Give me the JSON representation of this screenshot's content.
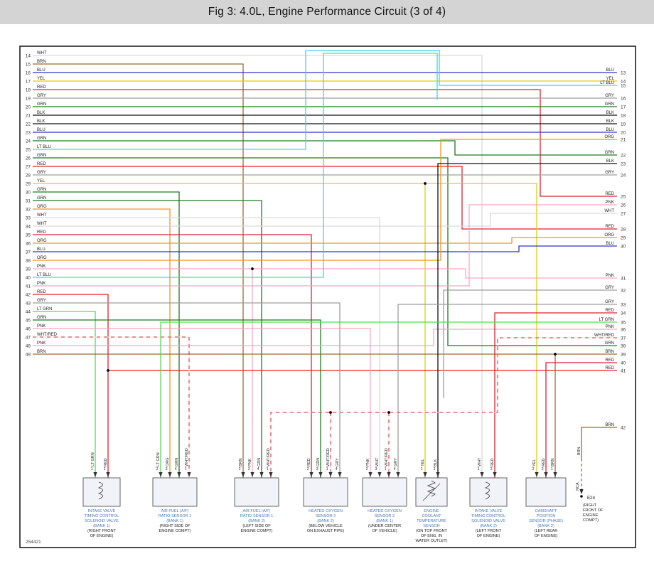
{
  "title": "Fig 3: 4.0L, Engine Performance Circuit (3 of 4)",
  "diagram_id": "254421",
  "wire_colors": {
    "WHT": "#d9d9d9",
    "BRN": "#9c6b30",
    "BLU": "#2b35c7",
    "YEL": "#ddd000",
    "RED": "#e02030",
    "GRY": "#9e9e9e",
    "GRN": "#1f7a1f",
    "BLK": "#111111",
    "LT BLU": "#3fd6e0",
    "ORG": "#f29422",
    "PNK": "#f7a8c4",
    "LT GRN": "#57d957",
    "WHT/RED": [
      "#e9e9e9",
      "#e05555"
    ]
  },
  "left_pins": [
    {
      "num": 14,
      "color": "WHT"
    },
    {
      "num": 15,
      "color": "BRN"
    },
    {
      "num": 16,
      "color": "BLU"
    },
    {
      "num": 17,
      "color": "YEL"
    },
    {
      "num": 18,
      "color": "RED"
    },
    {
      "num": 19,
      "color": "GRY"
    },
    {
      "num": 20,
      "color": "GRN"
    },
    {
      "num": 21,
      "color": "BLK"
    },
    {
      "num": 22,
      "color": "BLK"
    },
    {
      "num": 23,
      "color": "BLU"
    },
    {
      "num": 24,
      "color": "GRN"
    },
    {
      "num": 25,
      "color": "LT BLU"
    },
    {
      "num": 26,
      "color": "GRN"
    },
    {
      "num": 27,
      "color": "RED"
    },
    {
      "num": 28,
      "color": "GRY"
    },
    {
      "num": 29,
      "color": "YEL"
    },
    {
      "num": 30,
      "color": "GRN"
    },
    {
      "num": 31,
      "color": "GRN"
    },
    {
      "num": 32,
      "color": "ORG"
    },
    {
      "num": 33,
      "color": "WHT"
    },
    {
      "num": 34,
      "color": "WHT"
    },
    {
      "num": 35,
      "color": "RED"
    },
    {
      "num": 36,
      "color": "ORG"
    },
    {
      "num": 37,
      "color": "BLU"
    },
    {
      "num": 38,
      "color": "ORG"
    },
    {
      "num": 39,
      "color": "PNK"
    },
    {
      "num": 40,
      "color": "LT BLU"
    },
    {
      "num": 41,
      "color": "PNK"
    },
    {
      "num": 42,
      "color": "RED"
    },
    {
      "num": 43,
      "color": "GRY"
    },
    {
      "num": 44,
      "color": "LT GRN"
    },
    {
      "num": 45,
      "color": "GRN"
    },
    {
      "num": 46,
      "color": "PNK"
    },
    {
      "num": 47,
      "color": "WHT/RED"
    },
    {
      "num": 48,
      "color": "PNK"
    },
    {
      "num": 49,
      "color": "BRN"
    }
  ],
  "right_pins": [
    {
      "num": 13,
      "color": "BLU"
    },
    {
      "num": 14,
      "color": "YEL"
    },
    {
      "num": 15,
      "color": "LT BLU"
    },
    {
      "num": 16,
      "color": "GRY"
    },
    {
      "num": 17,
      "color": "GRN"
    },
    {
      "num": 18,
      "color": "BLK"
    },
    {
      "num": 19,
      "color": "BLK"
    },
    {
      "num": 20,
      "color": "BLU"
    },
    {
      "num": 21,
      "color": "ORG"
    },
    {
      "num": 22,
      "color": "GRN"
    },
    {
      "num": 23,
      "color": "BLK"
    },
    {
      "num": 24,
      "color": "GRY"
    },
    {
      "num": 25,
      "color": "RED"
    },
    {
      "num": 26,
      "color": "PNK"
    },
    {
      "num": 27,
      "color": "WHT"
    },
    {
      "num": 28,
      "color": "RED"
    },
    {
      "num": 29,
      "color": "ORG"
    },
    {
      "num": 30,
      "color": "BLU"
    },
    {
      "num": 31,
      "color": "PNK"
    },
    {
      "num": 32,
      "color": "GRY"
    },
    {
      "num": 33,
      "color": "GRY"
    },
    {
      "num": 34,
      "color": "RED"
    },
    {
      "num": 35,
      "color": "LT GRN"
    },
    {
      "num": 36,
      "color": "PNK"
    },
    {
      "num": 37,
      "color": "WHT/RED"
    },
    {
      "num": 38,
      "color": "GRN"
    },
    {
      "num": 39,
      "color": "BRN"
    },
    {
      "num": 40,
      "color": "RED"
    },
    {
      "num": 41,
      "color": "RED"
    },
    {
      "num": 42,
      "color": "BRN"
    }
  ],
  "components": [
    {
      "id": "intake-valve-timing-control-solenoid-valve-bank-1",
      "symbol": "coil",
      "name_lines": [
        "INTAKE VALVE",
        "TIMING CONTROL",
        "SOLENOID VALVE",
        "(BANK 1)"
      ],
      "location_lines": [
        "(RIGHT FRONT",
        "OF ENGINE)"
      ],
      "pins": [
        {
          "num": "1",
          "color": "LT GRN"
        },
        {
          "num": "2",
          "color": "RED"
        }
      ]
    },
    {
      "id": "air-fuel-ratio-sensor-1-bank-1",
      "symbol": "box",
      "name_lines": [
        "AIR FUEL (A/F)",
        "RATIO SENSOR 1",
        "(BANK 1)"
      ],
      "location_lines": [
        "(RIGHT SIDE OF",
        "ENGINE COMPT)"
      ],
      "pins": [
        {
          "num": "2",
          "color": "LT GRN"
        },
        {
          "num": "3",
          "color": "ORG"
        },
        {
          "num": "4",
          "color": "GRN"
        },
        {
          "num": "1",
          "color": "WHT/RED"
        }
      ]
    },
    {
      "id": "air-fuel-ratio-sensor-1-bank-2",
      "symbol": "box",
      "name_lines": [
        "AIR FUEL (A/F)",
        "RATIO SENSOR 1",
        "(BANK 2)"
      ],
      "location_lines": [
        "(LEFT SIDE OF",
        "ENGINE COMPT)"
      ],
      "pins": [
        {
          "num": "2",
          "color": "BRN"
        },
        {
          "num": "3",
          "color": "PNK"
        },
        {
          "num": "4",
          "color": "GRN"
        },
        {
          "num": "1",
          "color": "WHT/RED"
        }
      ]
    },
    {
      "id": "heated-oxygen-sensor-2-bank-2",
      "symbol": "box",
      "name_lines": [
        "HEATED OXYGEN",
        "SENSOR 2",
        "(BANK 2)"
      ],
      "location_lines": [
        "(BELOW VEHICLE",
        "ON EXHAUST PIPE)"
      ],
      "pins": [
        {
          "num": "2",
          "color": "RED"
        },
        {
          "num": "3",
          "color": "GRN"
        },
        {
          "num": "1",
          "color": "WHT/RED"
        },
        {
          "num": "4",
          "color": "GRY"
        }
      ]
    },
    {
      "id": "heated-oxygen-sensor-2-bank-1",
      "symbol": "box",
      "name_lines": [
        "HEATED OXYGEN",
        "SENSOR 2",
        "(BANK 1)"
      ],
      "location_lines": [
        "(UNDER CENTER",
        "OF VEHICLE)"
      ],
      "pins": [
        {
          "num": "2",
          "color": "PNK"
        },
        {
          "num": "3",
          "color": "WHT"
        },
        {
          "num": "1",
          "color": "WHT/RED"
        },
        {
          "num": "4",
          "color": "GRY"
        }
      ]
    },
    {
      "id": "engine-coolant-temperature-sensor",
      "symbol": "thermistor",
      "name_lines": [
        "ENGINE",
        "COOLANT",
        "TEMPERATURE",
        "SENSOR"
      ],
      "location_lines": [
        "(ON TOP FRONT",
        "OF ENG, IN",
        "WATER OUTLET)"
      ],
      "pins": [
        {
          "num": "1",
          "color": "YEL"
        },
        {
          "num": "2",
          "color": "BLK"
        }
      ]
    },
    {
      "id": "intake-valve-timing-control-solenoid-valve-bank-2",
      "symbol": "coil",
      "name_lines": [
        "INTAKE VALVE",
        "TIMING CONTROL",
        "SOLENOID VALVE",
        "(BANK 2)"
      ],
      "location_lines": [
        "(LEFT FRONT",
        "OF ENGINE)"
      ],
      "pins": [
        {
          "num": "1",
          "color": "WHT"
        },
        {
          "num": "2",
          "color": "RED"
        }
      ]
    },
    {
      "id": "camshaft-position-sensor-phase-bank-2",
      "symbol": "box",
      "name_lines": [
        "CAMSHAFT",
        "POSITION",
        "SENSOR (PHASE)",
        "(BANK 2)"
      ],
      "location_lines": [
        "(LEFT REAR",
        "OF ENGINE)"
      ],
      "pins": [
        {
          "num": "2",
          "color": "YEL"
        },
        {
          "num": "3",
          "color": "RED"
        },
        {
          "num": "1",
          "color": "BRN"
        }
      ]
    },
    {
      "id": "e24-connector",
      "symbol": "connector",
      "name_lines": [
        "E24"
      ],
      "location_lines": [
        "(RIGHT",
        "FRONT OF",
        "ENGINE",
        "COMPT)"
      ],
      "pins": [
        {
          "num": "",
          "color": "BRN"
        }
      ],
      "extra_label": "NCA"
    }
  ]
}
